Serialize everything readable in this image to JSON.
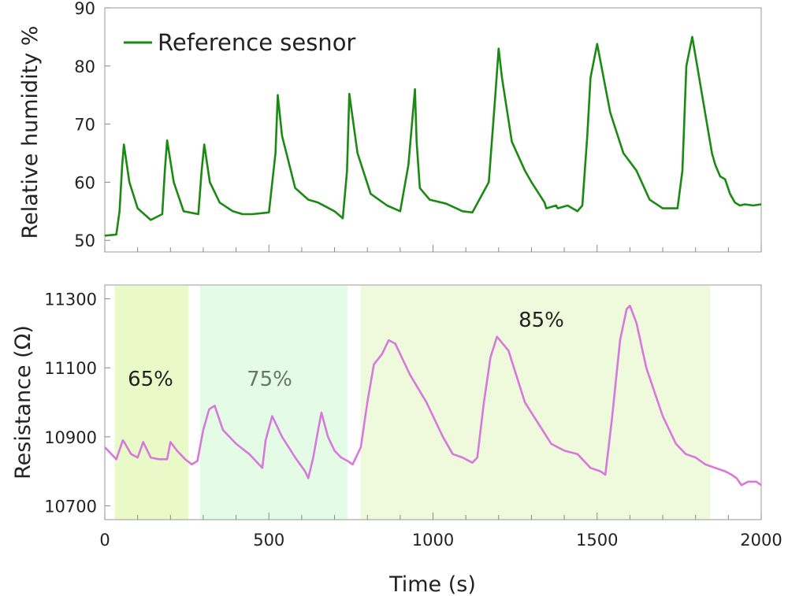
{
  "chart_data": [
    {
      "type": "line",
      "panel": "top",
      "ylabel": "Relative humidity %",
      "xlim": [
        0,
        2000
      ],
      "ylim": [
        48,
        90
      ],
      "yticks": [
        "50",
        "60",
        "70",
        "80",
        "90"
      ],
      "grid": false,
      "legend": {
        "position": "top-left",
        "entries": [
          "Reference sesnor"
        ]
      },
      "series": [
        {
          "name": "Reference sesnor",
          "color": "#1a8a12",
          "x": [
            0,
            35,
            45,
            53,
            58,
            75,
            100,
            140,
            175,
            183,
            190,
            210,
            240,
            285,
            295,
            303,
            320,
            350,
            390,
            420,
            450,
            500,
            520,
            527,
            540,
            580,
            620,
            650,
            700,
            725,
            738,
            745,
            770,
            810,
            860,
            900,
            925,
            945,
            950,
            960,
            990,
            1040,
            1090,
            1120,
            1170,
            1190,
            1200,
            1210,
            1240,
            1280,
            1300,
            1340,
            1345,
            1375,
            1380,
            1410,
            1440,
            1455,
            1470,
            1480,
            1500,
            1540,
            1580,
            1620,
            1660,
            1700,
            1745,
            1760,
            1772,
            1790,
            1820,
            1850,
            1860,
            1875,
            1890,
            1905,
            1920,
            1935,
            1950,
            1975,
            2000
          ],
          "y": [
            50.8,
            51,
            55,
            63,
            66.5,
            60,
            55.5,
            53.5,
            54.5,
            62,
            67.2,
            60,
            55,
            54.5,
            62,
            66.5,
            60,
            56.5,
            55,
            54.5,
            54.5,
            54.8,
            65,
            75,
            68,
            59,
            57,
            56.5,
            55,
            53.8,
            62,
            75.2,
            65,
            58,
            56,
            55,
            63,
            76,
            67,
            59,
            57,
            56.3,
            55,
            54.8,
            60,
            75,
            83,
            78,
            67,
            62,
            60,
            56.5,
            55.5,
            56,
            55.5,
            56,
            55,
            56,
            68,
            78,
            83.8,
            72,
            65,
            62,
            57,
            55.5,
            55.5,
            62,
            80,
            85,
            75,
            65,
            63,
            61,
            60.5,
            58,
            56.5,
            56,
            56.2,
            56,
            56.2
          ]
        }
      ]
    },
    {
      "type": "line",
      "panel": "bottom",
      "xlabel": "Time (s)",
      "ylabel": "Resistance (Ω)",
      "xlim": [
        0,
        2000
      ],
      "ylim": [
        10660,
        11340
      ],
      "xticks": [
        "0",
        "500",
        "1000",
        "1500",
        "2000"
      ],
      "yticks": [
        "10700",
        "10900",
        "11100",
        "11300"
      ],
      "grid": false,
      "regions": [
        {
          "label": "65%",
          "x": [
            30,
            255
          ],
          "color": "#e9fac8",
          "label_color": "#222222"
        },
        {
          "label": "75%",
          "x": [
            290,
            740
          ],
          "color": "#e4fbe6",
          "label_color": "#667766"
        },
        {
          "label": "85%",
          "x": [
            780,
            1845
          ],
          "color": "#eefadb",
          "label_color": "#222222"
        }
      ],
      "series": [
        {
          "name": "",
          "color": "#d779dc",
          "x": [
            0,
            20,
            35,
            55,
            62,
            80,
            100,
            117,
            140,
            165,
            190,
            200,
            220,
            245,
            265,
            282,
            300,
            318,
            335,
            360,
            400,
            440,
            460,
            480,
            490,
            510,
            540,
            580,
            610,
            620,
            635,
            650,
            660,
            680,
            700,
            720,
            740,
            755,
            780,
            800,
            820,
            845,
            865,
            885,
            930,
            980,
            1030,
            1060,
            1090,
            1120,
            1135,
            1155,
            1175,
            1195,
            1230,
            1280,
            1320,
            1360,
            1400,
            1440,
            1480,
            1510,
            1525,
            1545,
            1570,
            1590,
            1600,
            1620,
            1650,
            1700,
            1740,
            1770,
            1800,
            1830,
            1860,
            1890,
            1910,
            1925,
            1940,
            1960,
            1985,
            2000
          ],
          "y": [
            10870,
            10850,
            10835,
            10890,
            10880,
            10850,
            10840,
            10885,
            10840,
            10835,
            10835,
            10885,
            10860,
            10835,
            10820,
            10830,
            10920,
            10980,
            10990,
            10920,
            10880,
            10850,
            10830,
            10810,
            10890,
            10960,
            10900,
            10840,
            10800,
            10780,
            10840,
            10920,
            10970,
            10900,
            10860,
            10840,
            10830,
            10820,
            10870,
            11000,
            11110,
            11140,
            11180,
            11170,
            11080,
            11000,
            10900,
            10850,
            10840,
            10825,
            10840,
            11000,
            11130,
            11190,
            11150,
            11000,
            10940,
            10880,
            10860,
            10850,
            10810,
            10800,
            10790,
            10950,
            11180,
            11270,
            11280,
            11230,
            11100,
            10960,
            10880,
            10850,
            10840,
            10820,
            10810,
            10800,
            10790,
            10780,
            10760,
            10770,
            10770,
            10760
          ]
        }
      ]
    }
  ]
}
